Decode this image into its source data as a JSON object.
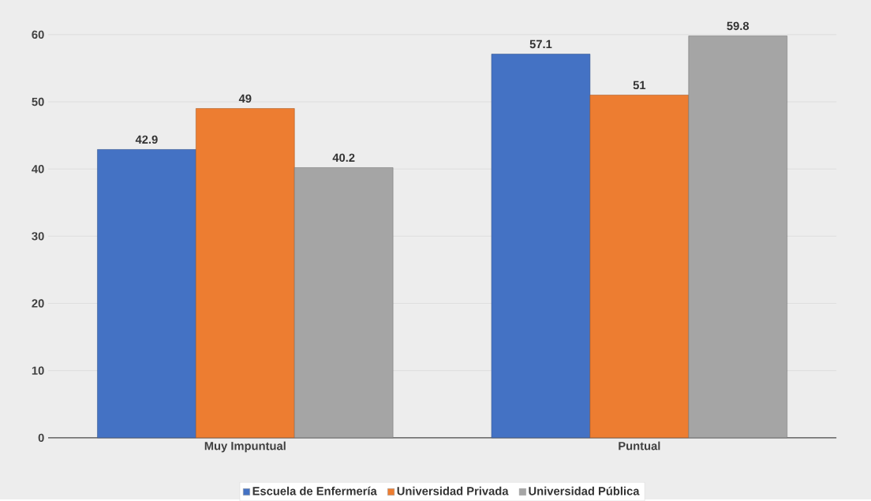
{
  "chart_data": {
    "type": "bar",
    "categories": [
      "Muy Impuntual",
      "Puntual"
    ],
    "series": [
      {
        "name": "Escuela de Enfermería",
        "color": "#4472c4",
        "values": [
          42.9,
          57.1
        ]
      },
      {
        "name": "Universidad Privada",
        "color": "#ed7d31",
        "values": [
          49,
          51
        ]
      },
      {
        "name": "Universidad Pública",
        "color": "#a5a5a5",
        "values": [
          40.2,
          59.8
        ]
      }
    ],
    "ylim": [
      0,
      60
    ],
    "yticks": [
      0,
      10,
      20,
      30,
      40,
      50,
      60
    ],
    "grid": "y",
    "legend": "bottom",
    "data_labels": true
  }
}
